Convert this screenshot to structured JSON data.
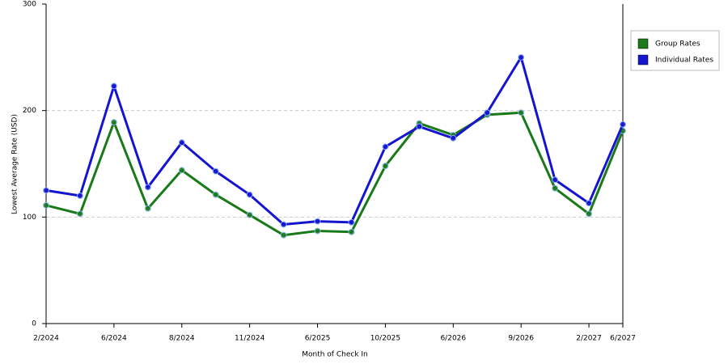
{
  "chart_data": {
    "type": "line",
    "x_label": "Month of Check In",
    "y_label": "Lowest Average Rate (USD)",
    "categories": [
      "2/2024",
      null,
      "6/2024",
      null,
      "8/2024",
      null,
      "11/2024",
      null,
      "6/2025",
      null,
      "10/2025",
      null,
      "6/2026",
      null,
      "9/2026",
      null,
      "2/2027",
      "6/2027"
    ],
    "series": [
      {
        "name": "Group Rates",
        "color": "#1a7a1a",
        "values": [
          111,
          103,
          189,
          108,
          144,
          121,
          102,
          83,
          87,
          86,
          148,
          188,
          177,
          196,
          198,
          127,
          103,
          181
        ]
      },
      {
        "name": "Individual Rates",
        "color": "#1515d0",
        "values": [
          125,
          120,
          223,
          128,
          170,
          143,
          121,
          93,
          96,
          95,
          166,
          185,
          174,
          198,
          250,
          135,
          113,
          187
        ]
      }
    ],
    "ylim": [
      0,
      300
    ],
    "yticks": [
      0,
      100,
      200,
      300
    ],
    "grid": true,
    "legend": "right"
  }
}
